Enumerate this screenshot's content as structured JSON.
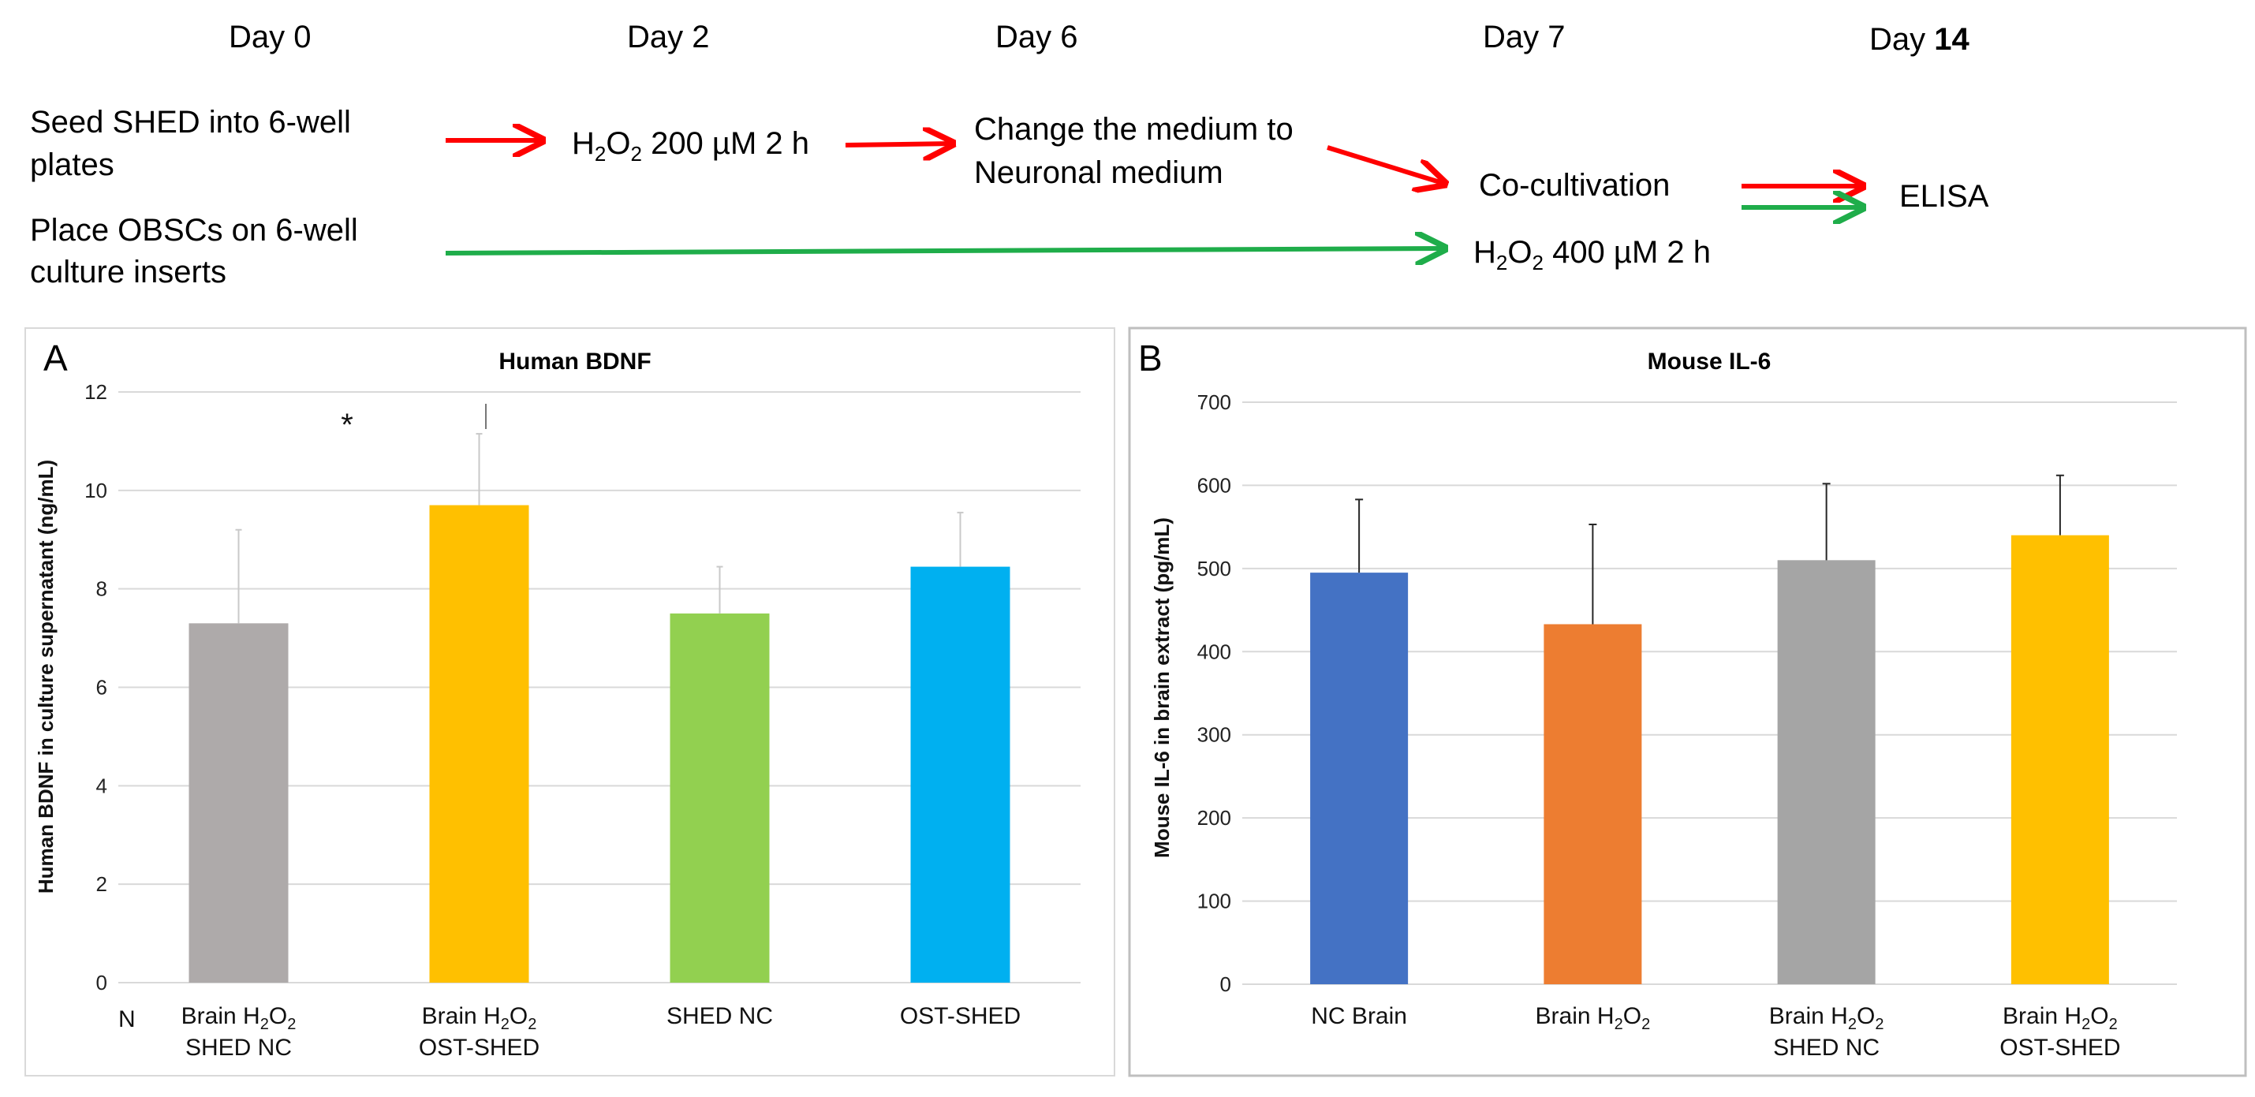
{
  "timeline": {
    "days": [
      {
        "label": "Day 0"
      },
      {
        "label": "Day 2"
      },
      {
        "label": "Day 6"
      },
      {
        "label": "Day 7"
      },
      {
        "label": "Day ",
        "bold": "14"
      }
    ],
    "steps": {
      "seed": [
        "Seed SHED into 6-well",
        "plates"
      ],
      "h2o2_200": "H2O2 200 µM 2 h",
      "medium": [
        "Change the medium to",
        "Neuronal medium"
      ],
      "cocultivation": "Co-cultivation",
      "elisa": "ELISA",
      "obsc": [
        "Place OBSCs on 6-well",
        "culture inserts"
      ],
      "h2o2_400": "H2O2 400 µM 2 h"
    },
    "colors": {
      "shed_arrow": "#ff0000",
      "obsc_arrow": "#1fad4a"
    }
  },
  "chart_data": [
    {
      "type": "bar",
      "panel": "A",
      "title": "Human BDNF",
      "ylabel": "Human BDNF in culture supernatant (ng/mL)",
      "ylim": [
        0,
        12
      ],
      "yticks": [
        0,
        2,
        4,
        6,
        8,
        10,
        12
      ],
      "first_tick_partial": "N",
      "categories": [
        [
          "Brain H2O2",
          "SHED NC"
        ],
        [
          "Brain H2O2",
          "OST-SHED"
        ],
        [
          "SHED NC"
        ],
        [
          "OST-SHED"
        ]
      ],
      "values": [
        7.3,
        9.7,
        7.5,
        8.45
      ],
      "errors": [
        1.9,
        1.45,
        0.95,
        1.1
      ],
      "colors": [
        "#aeaaaa",
        "#ffc000",
        "#92d050",
        "#00b0f0"
      ],
      "annotation": "*",
      "grid": true
    },
    {
      "type": "bar",
      "panel": "B",
      "title": "Mouse IL-6",
      "ylabel": "Mouse IL-6 in brain extract (pg/mL)",
      "ylim": [
        0,
        700
      ],
      "yticks": [
        0,
        100,
        200,
        300,
        400,
        500,
        600,
        700
      ],
      "categories": [
        [
          "NC Brain"
        ],
        [
          "Brain H2O2"
        ],
        [
          "Brain H2O2",
          "SHED NC"
        ],
        [
          "Brain H2O2",
          "OST-SHED"
        ]
      ],
      "values": [
        495,
        433,
        510,
        540
      ],
      "errors": [
        88,
        120,
        92,
        72
      ],
      "colors": [
        "#4472c4",
        "#ed7d31",
        "#a5a5a5",
        "#ffc000"
      ],
      "grid": true
    }
  ]
}
